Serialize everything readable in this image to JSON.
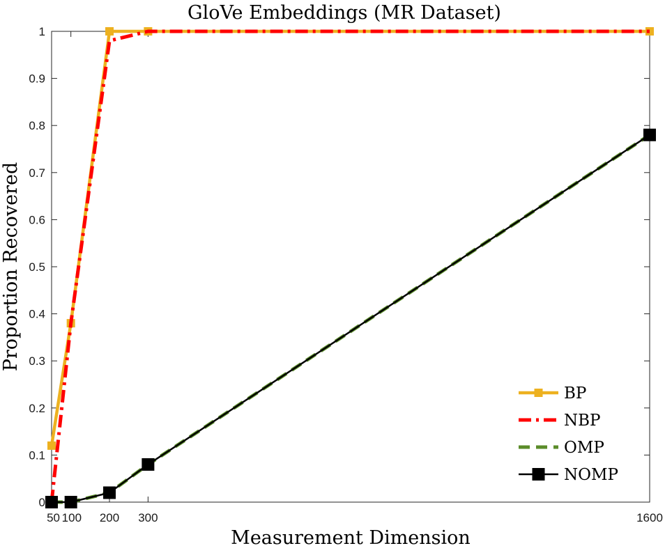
{
  "chart_data": {
    "type": "line",
    "title": "GloVe Embeddings (MR Dataset)",
    "xlabel": "Measurement Dimension",
    "ylabel": "Proportion Recovered",
    "x": [
      50,
      100,
      200,
      300,
      1600
    ],
    "xticks": [
      50,
      100,
      200,
      300,
      1600
    ],
    "xtick_labels": [
      "50",
      "100",
      "200",
      "300",
      "1600"
    ],
    "yticks": [
      0,
      0.1,
      0.2,
      0.3,
      0.4,
      0.5,
      0.6,
      0.7,
      0.8,
      0.9,
      1
    ],
    "ytick_labels": [
      "0",
      "0.1",
      "0.2",
      "0.3",
      "0.4",
      "0.5",
      "0.6",
      "0.7",
      "0.8",
      "0.9",
      "1"
    ],
    "xlim": [
      50,
      1600
    ],
    "ylim": [
      0,
      1
    ],
    "grid": false,
    "legend_position": "bottom-right",
    "series": [
      {
        "name": "BP",
        "values": [
          0.12,
          0.38,
          1.0,
          1.0,
          1.0
        ],
        "color": "#EDB120",
        "style": "solid",
        "marker": "square-small"
      },
      {
        "name": "NBP",
        "values": [
          0.0,
          0.38,
          0.98,
          1.0,
          1.0
        ],
        "color": "#FF0000",
        "style": "dash-dot",
        "marker": "none"
      },
      {
        "name": "OMP",
        "values": [
          0.0,
          0.0,
          0.02,
          0.08,
          0.78
        ],
        "color": "#5B8C2A",
        "style": "dashed",
        "marker": "none"
      },
      {
        "name": "NOMP",
        "values": [
          0.0,
          0.0,
          0.02,
          0.08,
          0.78
        ],
        "color": "#000000",
        "style": "solid",
        "marker": "square-large"
      }
    ]
  }
}
